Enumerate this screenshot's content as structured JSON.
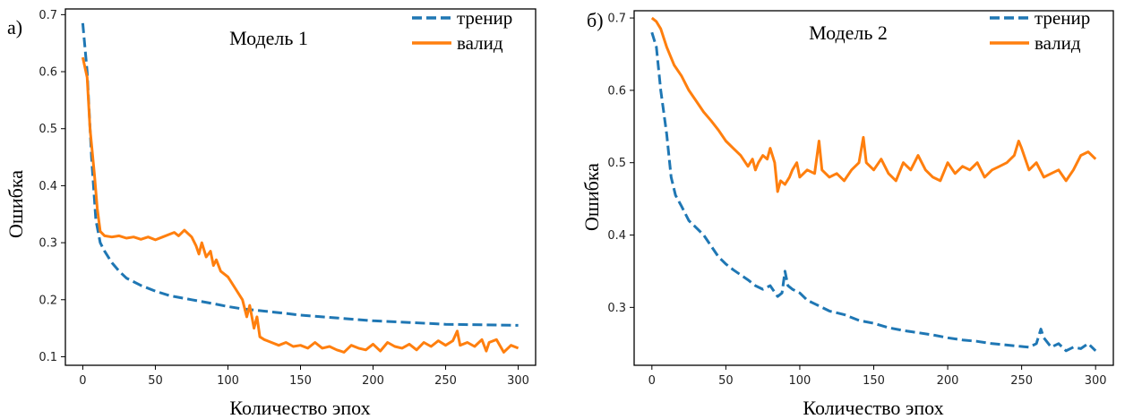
{
  "figure": {
    "xlabel": "Количество эпох",
    "ylabel": "Ошибка"
  },
  "chart_data": [
    {
      "type": "line",
      "panel_label": "а)",
      "title": "Модель 1",
      "xlabel": "Количество эпох",
      "ylabel": "Ошибка",
      "xlim": [
        -12,
        312
      ],
      "ylim": [
        0.085,
        0.71
      ],
      "xticks": [
        0,
        50,
        100,
        150,
        200,
        250,
        300
      ],
      "yticks": [
        0.1,
        0.2,
        0.3,
        0.4,
        0.5,
        0.6,
        0.7
      ],
      "grid": false,
      "legend_position": "top-right",
      "series": [
        {
          "name": "тренир",
          "color": "#1f77b4",
          "style": "dashed",
          "x": [
            0,
            3,
            6,
            9,
            12,
            15,
            20,
            25,
            30,
            40,
            50,
            60,
            75,
            90,
            100,
            110,
            125,
            140,
            150,
            175,
            200,
            225,
            250,
            275,
            300
          ],
          "y": [
            0.685,
            0.6,
            0.45,
            0.34,
            0.3,
            0.285,
            0.265,
            0.25,
            0.238,
            0.225,
            0.215,
            0.207,
            0.2,
            0.193,
            0.188,
            0.184,
            0.18,
            0.176,
            0.173,
            0.168,
            0.163,
            0.16,
            0.157,
            0.156,
            0.155
          ]
        },
        {
          "name": "валид",
          "color": "#ff7f0e",
          "style": "solid",
          "x": [
            0,
            3,
            5,
            8,
            10,
            12,
            15,
            20,
            25,
            30,
            35,
            40,
            45,
            50,
            55,
            60,
            63,
            66,
            70,
            75,
            78,
            80,
            82,
            85,
            88,
            90,
            92,
            95,
            100,
            105,
            110,
            113,
            115,
            118,
            120,
            122,
            125,
            130,
            135,
            140,
            145,
            150,
            155,
            160,
            165,
            170,
            175,
            180,
            185,
            190,
            195,
            200,
            205,
            210,
            215,
            220,
            225,
            230,
            235,
            240,
            245,
            250,
            255,
            258,
            260,
            265,
            270,
            275,
            278,
            280,
            285,
            290,
            295,
            300
          ],
          "y": [
            0.625,
            0.59,
            0.5,
            0.42,
            0.36,
            0.32,
            0.312,
            0.31,
            0.312,
            0.308,
            0.31,
            0.306,
            0.31,
            0.305,
            0.31,
            0.315,
            0.318,
            0.312,
            0.322,
            0.31,
            0.295,
            0.28,
            0.3,
            0.275,
            0.285,
            0.26,
            0.27,
            0.25,
            0.24,
            0.22,
            0.2,
            0.17,
            0.19,
            0.15,
            0.17,
            0.135,
            0.13,
            0.125,
            0.12,
            0.125,
            0.118,
            0.12,
            0.115,
            0.125,
            0.115,
            0.118,
            0.112,
            0.108,
            0.12,
            0.115,
            0.112,
            0.122,
            0.11,
            0.125,
            0.118,
            0.115,
            0.122,
            0.112,
            0.125,
            0.118,
            0.128,
            0.12,
            0.128,
            0.145,
            0.12,
            0.125,
            0.118,
            0.13,
            0.11,
            0.125,
            0.13,
            0.108,
            0.12,
            0.115
          ]
        }
      ]
    },
    {
      "type": "line",
      "panel_label": "б)",
      "title": "Модель 2",
      "xlabel": "Количество эпох",
      "ylabel": "Ошибка",
      "xlim": [
        -12,
        312
      ],
      "ylim": [
        0.22,
        0.71
      ],
      "xticks": [
        0,
        50,
        100,
        150,
        200,
        250,
        300
      ],
      "yticks": [
        0.3,
        0.4,
        0.5,
        0.6,
        0.7
      ],
      "grid": false,
      "legend_position": "top-right",
      "series": [
        {
          "name": "тренир",
          "color": "#1f77b4",
          "style": "dashed",
          "x": [
            0,
            3,
            6,
            10,
            13,
            16,
            20,
            25,
            30,
            35,
            40,
            45,
            50,
            55,
            60,
            65,
            70,
            75,
            80,
            85,
            88,
            90,
            92,
            95,
            100,
            105,
            110,
            115,
            120,
            130,
            140,
            150,
            160,
            170,
            180,
            190,
            200,
            210,
            220,
            230,
            240,
            250,
            255,
            260,
            263,
            265,
            270,
            275,
            280,
            285,
            290,
            295,
            300
          ],
          "y": [
            0.68,
            0.66,
            0.6,
            0.54,
            0.48,
            0.455,
            0.44,
            0.42,
            0.41,
            0.4,
            0.385,
            0.37,
            0.36,
            0.352,
            0.345,
            0.338,
            0.33,
            0.325,
            0.33,
            0.315,
            0.32,
            0.35,
            0.33,
            0.325,
            0.32,
            0.31,
            0.305,
            0.3,
            0.295,
            0.29,
            0.282,
            0.278,
            0.272,
            0.268,
            0.265,
            0.262,
            0.258,
            0.255,
            0.253,
            0.25,
            0.248,
            0.246,
            0.245,
            0.25,
            0.27,
            0.258,
            0.245,
            0.25,
            0.24,
            0.245,
            0.243,
            0.25,
            0.24
          ]
        },
        {
          "name": "валид",
          "color": "#ff7f0e",
          "style": "solid",
          "x": [
            0,
            3,
            6,
            10,
            15,
            20,
            25,
            30,
            35,
            40,
            45,
            50,
            55,
            60,
            65,
            68,
            70,
            72,
            75,
            78,
            80,
            83,
            85,
            87,
            90,
            93,
            95,
            98,
            100,
            105,
            110,
            113,
            115,
            120,
            125,
            130,
            135,
            140,
            143,
            145,
            150,
            155,
            160,
            165,
            170,
            175,
            180,
            185,
            190,
            195,
            200,
            205,
            210,
            215,
            220,
            225,
            230,
            235,
            240,
            245,
            248,
            250,
            255,
            260,
            265,
            270,
            275,
            280,
            285,
            290,
            295,
            300
          ],
          "y": [
            0.7,
            0.695,
            0.685,
            0.66,
            0.635,
            0.62,
            0.6,
            0.585,
            0.57,
            0.558,
            0.545,
            0.53,
            0.52,
            0.51,
            0.495,
            0.505,
            0.49,
            0.5,
            0.51,
            0.505,
            0.52,
            0.5,
            0.46,
            0.475,
            0.47,
            0.48,
            0.49,
            0.5,
            0.48,
            0.49,
            0.485,
            0.53,
            0.49,
            0.48,
            0.485,
            0.475,
            0.49,
            0.5,
            0.535,
            0.5,
            0.49,
            0.505,
            0.485,
            0.475,
            0.5,
            0.49,
            0.51,
            0.49,
            0.48,
            0.475,
            0.5,
            0.485,
            0.495,
            0.49,
            0.5,
            0.48,
            0.49,
            0.495,
            0.5,
            0.51,
            0.53,
            0.52,
            0.49,
            0.5,
            0.48,
            0.485,
            0.49,
            0.475,
            0.49,
            0.51,
            0.515,
            0.505
          ]
        }
      ]
    }
  ]
}
